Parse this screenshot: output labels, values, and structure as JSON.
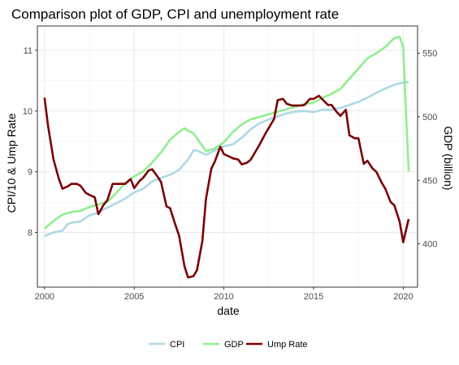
{
  "chart_data": {
    "type": "line",
    "title": "Comparison plot of GDP, CPI and unemployment rate",
    "xlabel": "date",
    "ylabel_left": "CPI/10 & Ump Rate",
    "ylabel_right": "GDP (billion)",
    "xlim": [
      1999.6,
      2020.8
    ],
    "ylim_left": [
      7.1,
      11.4
    ],
    "ylim_right": [
      365.9,
      571.5
    ],
    "x_ticks": [
      2000,
      2005,
      2010,
      2015,
      2020
    ],
    "x_tick_labels": [
      "2000",
      "2005",
      "2010",
      "2015",
      "2020"
    ],
    "y_left_ticks": [
      8,
      9,
      10,
      11
    ],
    "y_left_tick_labels": [
      "8",
      "9",
      "10",
      "11"
    ],
    "y_right_ticks": [
      400,
      450,
      500,
      550
    ],
    "y_right_tick_labels": [
      "400",
      "450",
      "500",
      "550"
    ],
    "grid": true,
    "legend_position": "bottom",
    "series": [
      {
        "name": "CPI",
        "axis": "left",
        "color": "#add8e6",
        "x": [
          2000.0,
          2000.5,
          2001.0,
          2001.3,
          2001.5,
          2002.0,
          2002.5,
          2003.0,
          2003.5,
          2004.0,
          2004.5,
          2005.0,
          2005.5,
          2006.0,
          2006.5,
          2007.0,
          2007.5,
          2008.0,
          2008.3,
          2008.5,
          2009.0,
          2009.5,
          2010.0,
          2010.5,
          2011.0,
          2011.5,
          2012.0,
          2012.5,
          2013.0,
          2013.5,
          2014.0,
          2014.5,
          2015.0,
          2015.5,
          2016.0,
          2016.5,
          2017.0,
          2017.5,
          2018.0,
          2018.5,
          2019.0,
          2019.5,
          2020.0,
          2020.3
        ],
        "y": [
          7.94,
          8.0,
          8.03,
          8.14,
          8.16,
          8.18,
          8.28,
          8.33,
          8.41,
          8.48,
          8.56,
          8.66,
          8.72,
          8.84,
          8.9,
          8.95,
          9.03,
          9.2,
          9.35,
          9.35,
          9.28,
          9.35,
          9.42,
          9.45,
          9.56,
          9.7,
          9.8,
          9.86,
          9.91,
          9.96,
          9.99,
          10.0,
          9.98,
          10.02,
          10.02,
          10.05,
          10.1,
          10.15,
          10.22,
          10.3,
          10.37,
          10.43,
          10.47,
          10.47
        ]
      },
      {
        "name": "GDP",
        "axis": "right",
        "color": "#90ee90",
        "x": [
          2000.0,
          2000.5,
          2001.0,
          2001.5,
          2002.0,
          2002.5,
          2003.0,
          2003.5,
          2004.0,
          2004.5,
          2005.0,
          2005.5,
          2006.0,
          2006.5,
          2007.0,
          2007.5,
          2007.8,
          2008.0,
          2008.3,
          2008.5,
          2009.0,
          2009.5,
          2010.0,
          2010.5,
          2011.0,
          2011.5,
          2012.0,
          2012.5,
          2013.0,
          2013.5,
          2014.0,
          2014.5,
          2015.0,
          2015.5,
          2016.0,
          2016.5,
          2017.0,
          2017.5,
          2018.0,
          2018.5,
          2019.0,
          2019.5,
          2019.8,
          2020.0,
          2020.3
        ],
        "y": [
          412,
          418,
          423,
          425,
          426,
          429,
          431,
          433,
          440,
          448,
          453,
          457,
          464,
          472,
          482,
          488,
          491,
          489,
          487,
          483,
          473,
          475,
          480,
          488,
          494,
          498,
          500,
          502,
          504,
          506,
          508,
          510,
          511,
          515,
          518,
          522,
          530,
          538,
          546,
          550,
          555,
          562,
          563,
          555,
          457
        ]
      },
      {
        "name": "Ump Rate",
        "axis": "left",
        "color": "#7b0000",
        "x": [
          2000.0,
          2000.2,
          2000.5,
          2000.8,
          2001.0,
          2001.3,
          2001.5,
          2001.8,
          2002.0,
          2002.3,
          2002.5,
          2002.8,
          2003.0,
          2003.3,
          2003.5,
          2003.8,
          2004.0,
          2004.3,
          2004.5,
          2004.8,
          2005.0,
          2005.3,
          2005.5,
          2005.8,
          2006.0,
          2006.3,
          2006.5,
          2006.8,
          2007.0,
          2007.3,
          2007.5,
          2007.8,
          2008.0,
          2008.3,
          2008.5,
          2008.8,
          2009.0,
          2009.3,
          2009.5,
          2009.8,
          2010.0,
          2010.3,
          2010.5,
          2010.8,
          2011.0,
          2011.3,
          2011.5,
          2011.8,
          2012.0,
          2012.3,
          2012.5,
          2012.8,
          2013.0,
          2013.3,
          2013.5,
          2013.8,
          2014.0,
          2014.3,
          2014.5,
          2014.8,
          2015.0,
          2015.3,
          2015.5,
          2015.8,
          2016.0,
          2016.3,
          2016.5,
          2016.8,
          2017.0,
          2017.3,
          2017.5,
          2017.8,
          2018.0,
          2018.3,
          2018.5,
          2018.8,
          2019.0,
          2019.3,
          2019.5,
          2019.8,
          2020.0,
          2020.3
        ],
        "y": [
          10.22,
          9.75,
          9.2,
          8.88,
          8.72,
          8.76,
          8.8,
          8.8,
          8.77,
          8.65,
          8.62,
          8.58,
          8.3,
          8.46,
          8.53,
          8.8,
          8.8,
          8.8,
          8.8,
          8.88,
          8.73,
          8.85,
          8.9,
          9.02,
          9.04,
          8.92,
          8.83,
          8.43,
          8.4,
          8.12,
          7.95,
          7.45,
          7.26,
          7.28,
          7.38,
          7.86,
          8.55,
          9.05,
          9.17,
          9.41,
          9.29,
          9.25,
          9.22,
          9.2,
          9.12,
          9.15,
          9.2,
          9.35,
          9.45,
          9.62,
          9.72,
          9.87,
          10.18,
          10.2,
          10.12,
          10.09,
          10.09,
          10.09,
          10.1,
          10.2,
          10.2,
          10.25,
          10.19,
          10.1,
          10.1,
          9.98,
          9.92,
          10.02,
          9.6,
          9.55,
          9.55,
          9.13,
          9.18,
          9.05,
          9.0,
          8.82,
          8.72,
          8.5,
          8.45,
          8.18,
          7.84,
          8.22
        ]
      }
    ]
  }
}
